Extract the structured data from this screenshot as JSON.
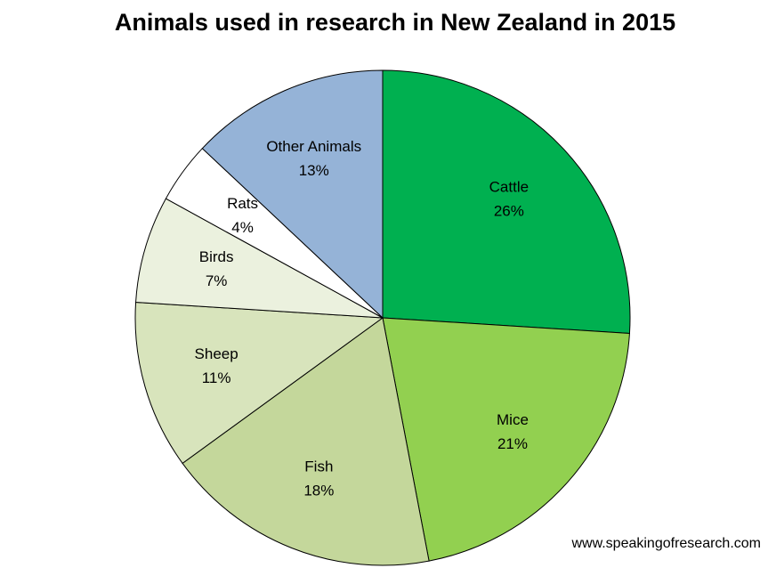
{
  "chart_data": {
    "type": "pie",
    "title": "Animals used in research in New Zealand in 2015",
    "categories": [
      "Cattle",
      "Mice",
      "Fish",
      "Sheep",
      "Birds",
      "Rats",
      "Other Animals"
    ],
    "values": [
      26,
      21,
      18,
      11,
      7,
      4,
      13
    ],
    "value_labels": [
      "26%",
      "21%",
      "18%",
      "11%",
      "7%",
      "4%",
      "13%"
    ],
    "colors": [
      "#00b050",
      "#92d050",
      "#c4d79b",
      "#d8e4bc",
      "#ebf1de",
      "#ffffff",
      "#95b3d7"
    ],
    "source": "www.speakingofresearch.com"
  }
}
